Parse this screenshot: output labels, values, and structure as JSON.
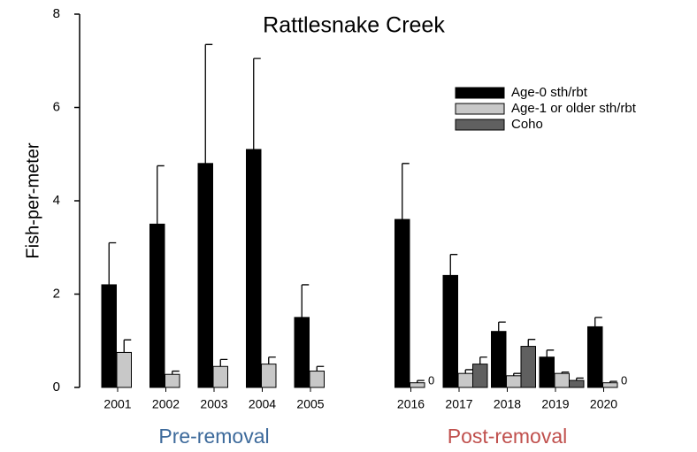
{
  "chart_data": {
    "type": "bar",
    "title": "Rattlesnake Creek",
    "y_label": "Fish-per-meter",
    "annotations": [
      {
        "text": "Pre-removal",
        "color": "#3d6a9b"
      },
      {
        "text": "Post-removal",
        "color": "#c0504d"
      }
    ],
    "categories": [
      "2001",
      "2002",
      "2003",
      "2004",
      "2005",
      "2016",
      "2017",
      "2018",
      "2019",
      "2020"
    ],
    "series": [
      {
        "name": "Age-0 sth/rbt",
        "color": "#000000",
        "values": [
          2.2,
          3.5,
          4.8,
          5.1,
          1.5,
          3.6,
          2.4,
          1.2,
          0.65,
          1.3
        ],
        "errors": [
          0.9,
          1.25,
          2.55,
          1.95,
          0.7,
          1.2,
          0.45,
          0.2,
          0.15,
          0.2
        ]
      },
      {
        "name": "Age-1 or older sth/rbt",
        "color": "#c8c8c8",
        "values": [
          0.75,
          0.28,
          0.45,
          0.5,
          0.35,
          0.1,
          0.3,
          0.25,
          0.3,
          0.1
        ],
        "errors": [
          0.27,
          0.07,
          0.15,
          0.15,
          0.1,
          0.05,
          0.08,
          0.05,
          0.03,
          0.03
        ]
      },
      {
        "name": "Coho",
        "color": "#606060",
        "values": [
          null,
          null,
          null,
          null,
          null,
          0,
          0.5,
          0.88,
          0.15,
          0
        ],
        "errors": [
          null,
          null,
          null,
          null,
          null,
          null,
          0.15,
          0.15,
          0.05,
          null
        ],
        "value_labels": [
          null,
          null,
          null,
          null,
          null,
          "0",
          null,
          null,
          null,
          "0"
        ]
      }
    ],
    "ylim": [
      0,
      8
    ],
    "yticks": [
      0,
      2,
      4,
      6,
      8
    ],
    "grid": false,
    "legend": "upper right"
  }
}
